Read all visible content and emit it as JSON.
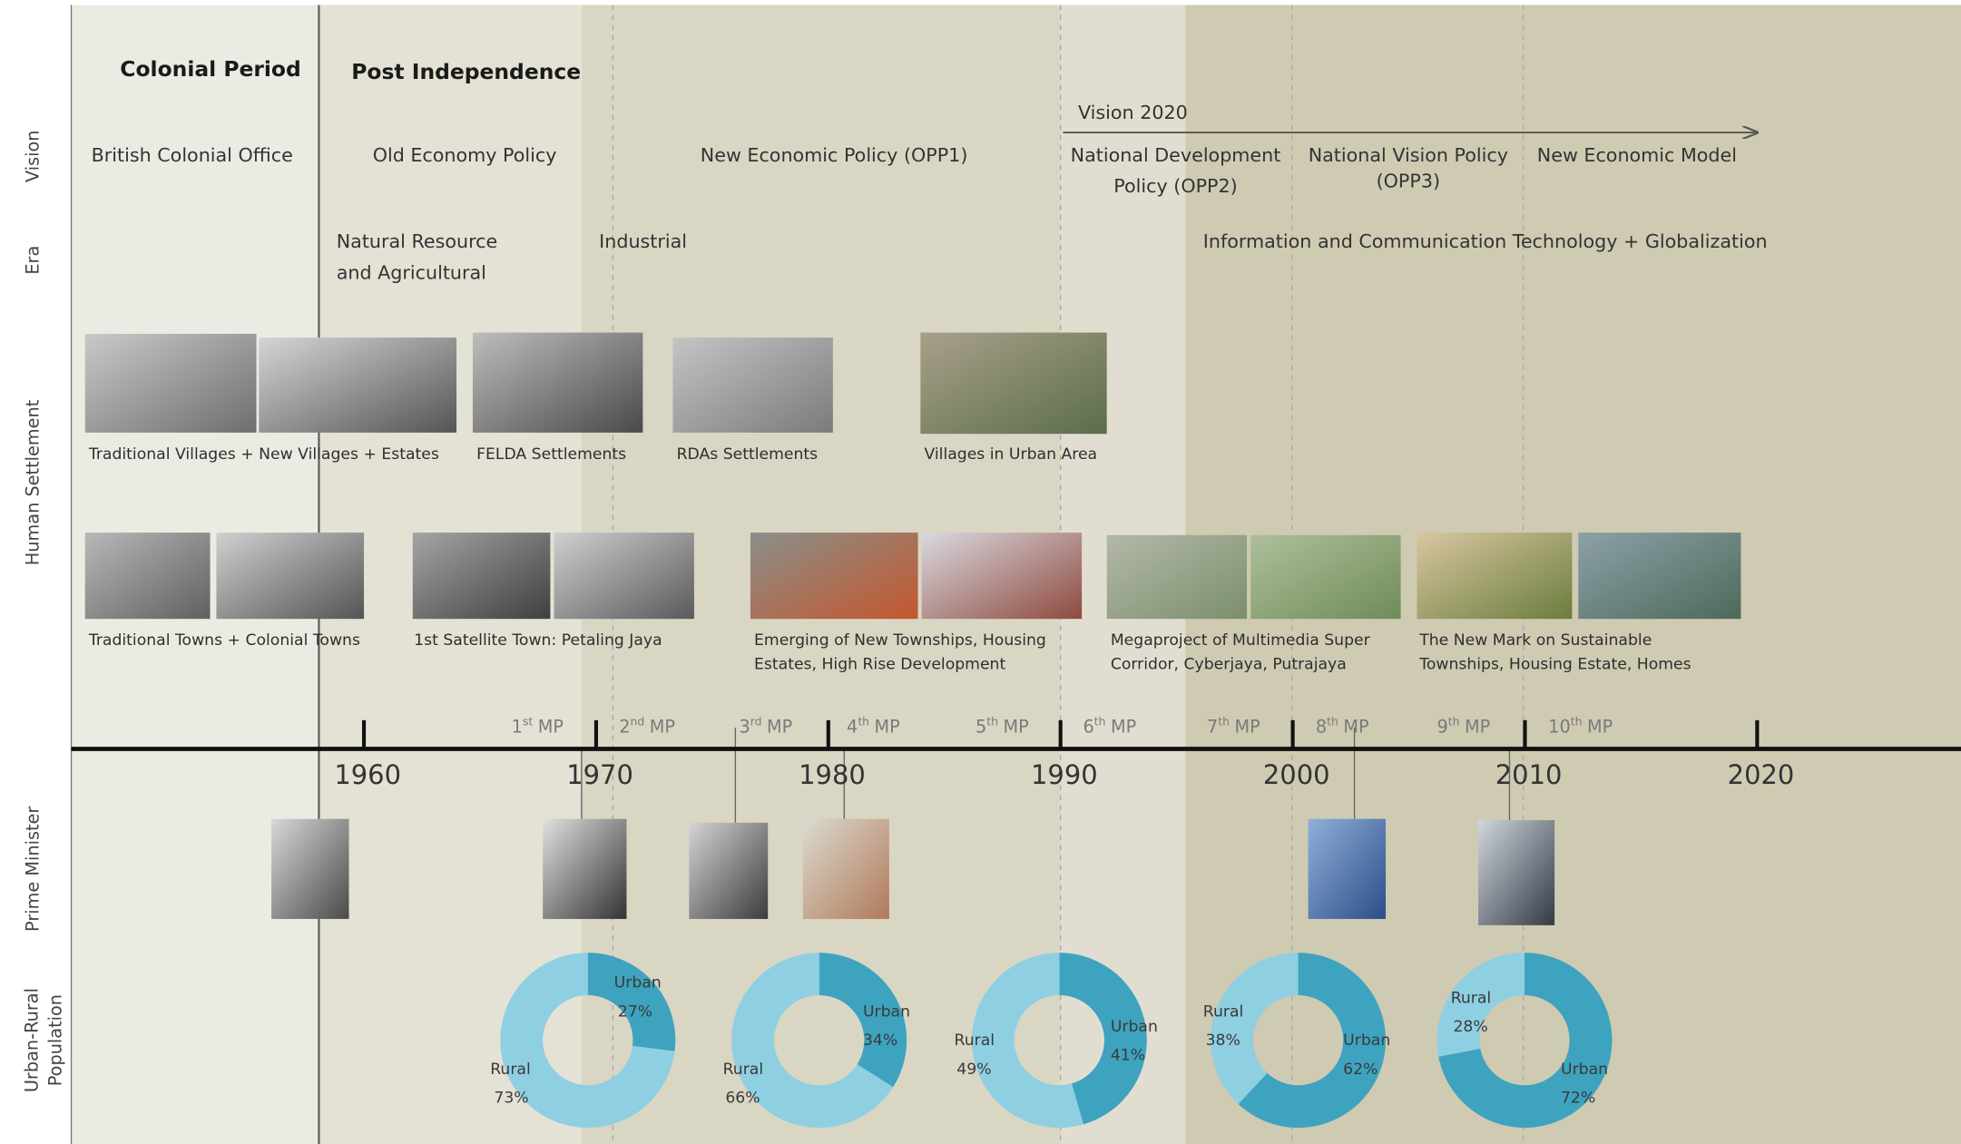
{
  "row_labels": [
    "Vision",
    "Era",
    "Human Settlement",
    "Prime Minister",
    [
      "Urban-Rural",
      "Population"
    ]
  ],
  "periods": [
    "Colonial Period",
    "Post Independence"
  ],
  "vision": {
    "arrow_label": "Vision 2020",
    "policies": [
      [
        "British Colonial Office"
      ],
      [
        "Old Economy Policy"
      ],
      [
        "New Economic Policy (OPP1)"
      ],
      [
        "National Development",
        "Policy (OPP2)"
      ],
      [
        "National Vision Policy",
        "(OPP3)"
      ],
      [
        "New Economic Model"
      ]
    ]
  },
  "era": [
    [
      "Natural Resource",
      "and Agricultural"
    ],
    [
      "Industrial"
    ],
    [
      "Information and Communication Technology + Globalization"
    ]
  ],
  "settlements": [
    [
      "Traditional Villages + New Villages + Estates"
    ],
    [
      "FELDA Settlements"
    ],
    [
      "RDAs Settlements"
    ],
    [
      "Villages in Urban Area"
    ],
    [
      "Traditional Towns + Colonial Towns"
    ],
    [
      "1st Satellite Town: Petaling Jaya"
    ],
    [
      "Emerging of New Townships, Housing",
      "Estates, High Rise Development"
    ],
    [
      "Megaproject of Multimedia Super",
      "Corridor, Cyberjaya, Putrajaya"
    ],
    [
      "The New Mark on Sustainable",
      "Townships, Housing Estate, Homes"
    ]
  ],
  "plans": [
    {
      "ordinal": "1",
      "suffix": "st",
      "text": "MP"
    },
    {
      "ordinal": "2",
      "suffix": "nd",
      "text": "MP"
    },
    {
      "ordinal": "3",
      "suffix": "rd",
      "text": "MP"
    },
    {
      "ordinal": "4",
      "suffix": "th",
      "text": "MP"
    },
    {
      "ordinal": "5",
      "suffix": "th",
      "text": "MP"
    },
    {
      "ordinal": "6",
      "suffix": "th",
      "text": "MP"
    },
    {
      "ordinal": "7",
      "suffix": "th",
      "text": "MP"
    },
    {
      "ordinal": "8",
      "suffix": "th",
      "text": "MP"
    },
    {
      "ordinal": "9",
      "suffix": "th",
      "text": "MP"
    },
    {
      "ordinal": "10",
      "suffix": "th",
      "text": "MP"
    }
  ],
  "years": [
    1960,
    1970,
    1980,
    1990,
    2000,
    2010,
    2020
  ],
  "population": [
    {
      "labels": [
        "Rural",
        "Urban"
      ],
      "values": [
        73,
        27
      ],
      "value_labels": [
        "73%",
        "27%"
      ]
    },
    {
      "labels": [
        "Rural",
        "Urban"
      ],
      "values": [
        66,
        34
      ],
      "value_labels": [
        "66%",
        "34%"
      ]
    },
    {
      "labels": [
        "Rural",
        "Urban"
      ],
      "values": [
        49,
        41
      ],
      "value_labels": [
        "49%",
        "41%"
      ]
    },
    {
      "labels": [
        "Rural",
        "Urban"
      ],
      "values": [
        38,
        62
      ],
      "value_labels": [
        "38%",
        "62%"
      ]
    },
    {
      "labels": [
        "Rural",
        "Urban"
      ],
      "values": [
        28,
        72
      ],
      "value_labels": [
        "28%",
        "72%"
      ]
    }
  ],
  "colors": [
    "#8fcfe2",
    "#3ea3bf"
  ]
}
